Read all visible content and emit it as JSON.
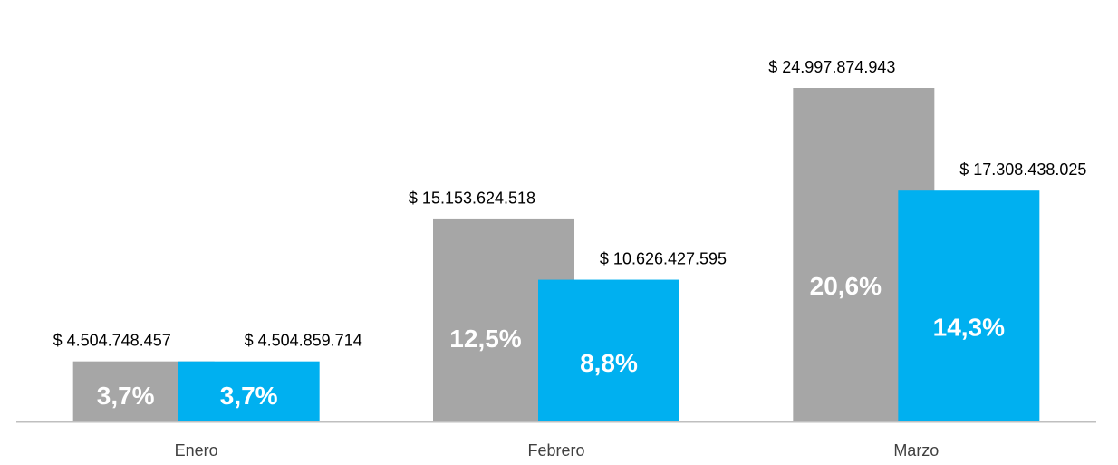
{
  "chart_data": {
    "type": "bar",
    "categories": [
      "Enero",
      "Febrero",
      "Marzo"
    ],
    "series": [
      {
        "color": "#a6a6a6",
        "values": [
          4504748457,
          15153624518,
          24997874943
        ],
        "value_labels": [
          "$ 4.504.748.457",
          "$ 15.153.624.518",
          "$ 24.997.874.943"
        ],
        "percent_labels": [
          "3,7%",
          "12,5%",
          "20,6%"
        ]
      },
      {
        "color": "#00b0f0",
        "values": [
          4504859714,
          10626427595,
          17308438025
        ],
        "value_labels": [
          "$ 4.504.859.714",
          "$ 10.626.427.595",
          "$ 17.308.438.025"
        ],
        "percent_labels": [
          "3,7%",
          "8,8%",
          "14,3%"
        ]
      }
    ]
  }
}
